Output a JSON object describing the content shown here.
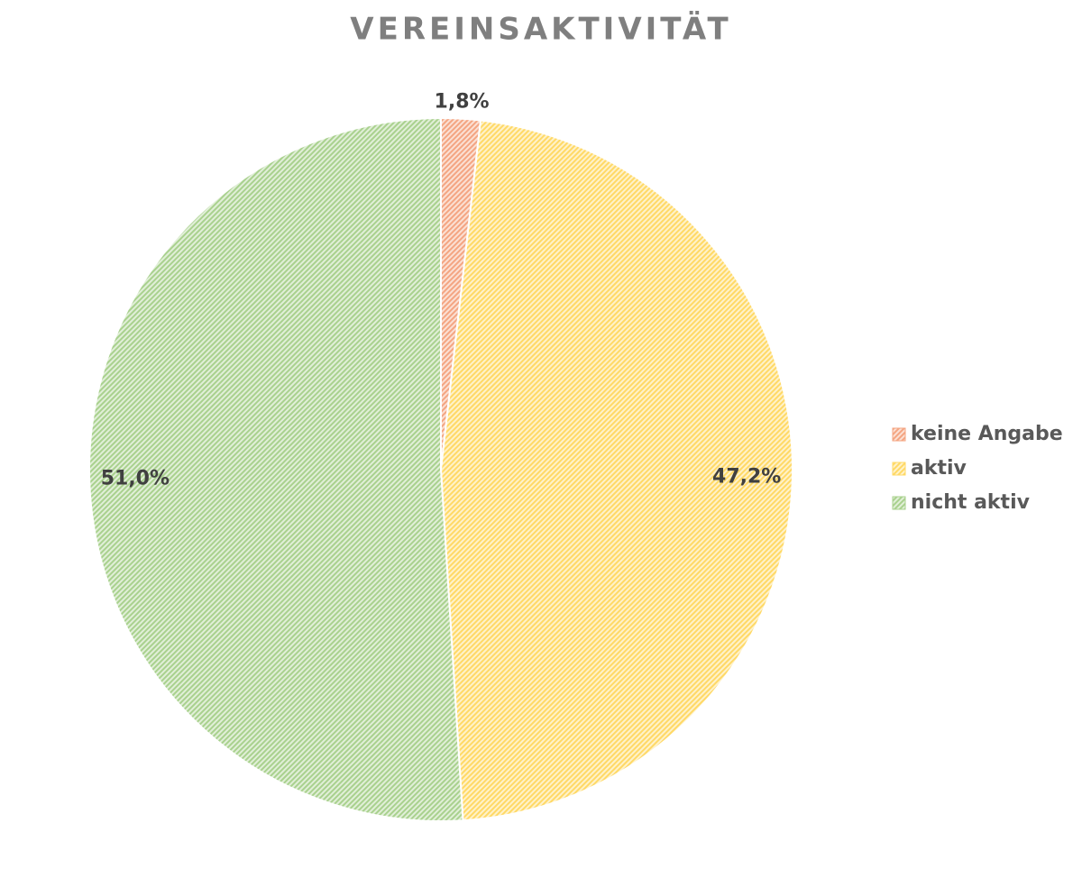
{
  "chart_data": {
    "type": "pie",
    "title": "VEREINSAKTIVITÄT",
    "categories": [
      "keine Angabe",
      "aktiv",
      "nicht aktiv"
    ],
    "values": [
      1.8,
      47.2,
      51.0
    ],
    "value_labels": [
      "1,8%",
      "47,2%",
      "51,0%"
    ],
    "colors": [
      "#f4a582",
      "#ffd966",
      "#a9d18e"
    ],
    "legend": "right"
  }
}
